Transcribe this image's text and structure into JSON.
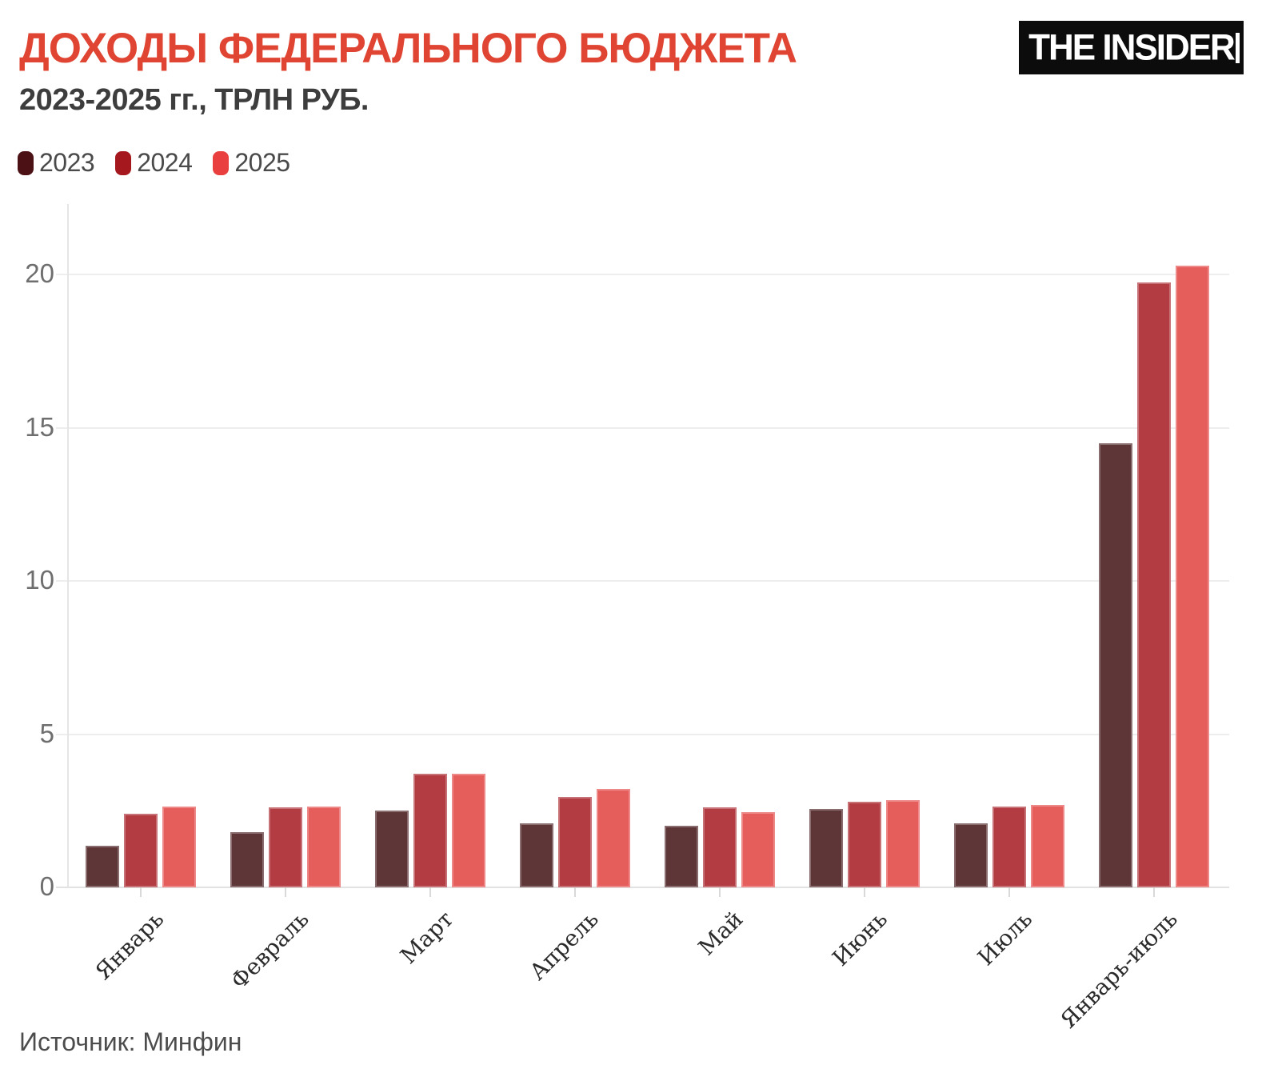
{
  "header": {
    "title": "ДОХОДЫ ФЕДЕРАЛЬНОГО БЮДЖЕТА",
    "subtitle": "2023-2025 гг., ТРЛН РУБ.",
    "title_color": "#e04533",
    "subtitle_color": "#3d3d3d"
  },
  "logo": {
    "text": "THE INSIDER",
    "background": "#0c0c0c",
    "foreground": "#ffffff"
  },
  "legend": [
    {
      "label": "2023",
      "color": "#4b1114"
    },
    {
      "label": "2024",
      "color": "#a5181d"
    },
    {
      "label": "2025",
      "color": "#e93f3f"
    }
  ],
  "chart_data": {
    "type": "bar",
    "title": "ДОХОДЫ ФЕДЕРАЛЬНОГО БЮДЖЕТА",
    "subtitle": "2023-2025 гг., ТРЛН РУБ.",
    "unit": "трлн руб.",
    "categories": [
      "Январь",
      "Февраль",
      "Март",
      "Апрель",
      "Май",
      "Июнь",
      "Июль",
      "Январь-июль"
    ],
    "series": [
      {
        "name": "2023",
        "bar_color": "#5e3638",
        "legend_color": "#4b1114",
        "values": [
          1.35,
          1.8,
          2.5,
          2.1,
          2.0,
          2.55,
          2.1,
          14.5
        ]
      },
      {
        "name": "2024",
        "bar_color": "#b23c42",
        "legend_color": "#a5181d",
        "values": [
          2.4,
          2.6,
          3.7,
          2.95,
          2.6,
          2.8,
          2.65,
          19.75
        ]
      },
      {
        "name": "2025",
        "bar_color": "#e65e5c",
        "legend_color": "#e93f3f",
        "values": [
          2.65,
          2.65,
          3.7,
          3.2,
          2.45,
          2.85,
          2.7,
          20.3
        ]
      }
    ],
    "xlabel": "",
    "ylabel": "",
    "yticks": [
      0,
      5,
      10,
      15,
      20
    ],
    "ylim": [
      0,
      22.3
    ],
    "grid": true,
    "legend_position": "top"
  },
  "footer": {
    "source": "Источник: Минфин"
  }
}
